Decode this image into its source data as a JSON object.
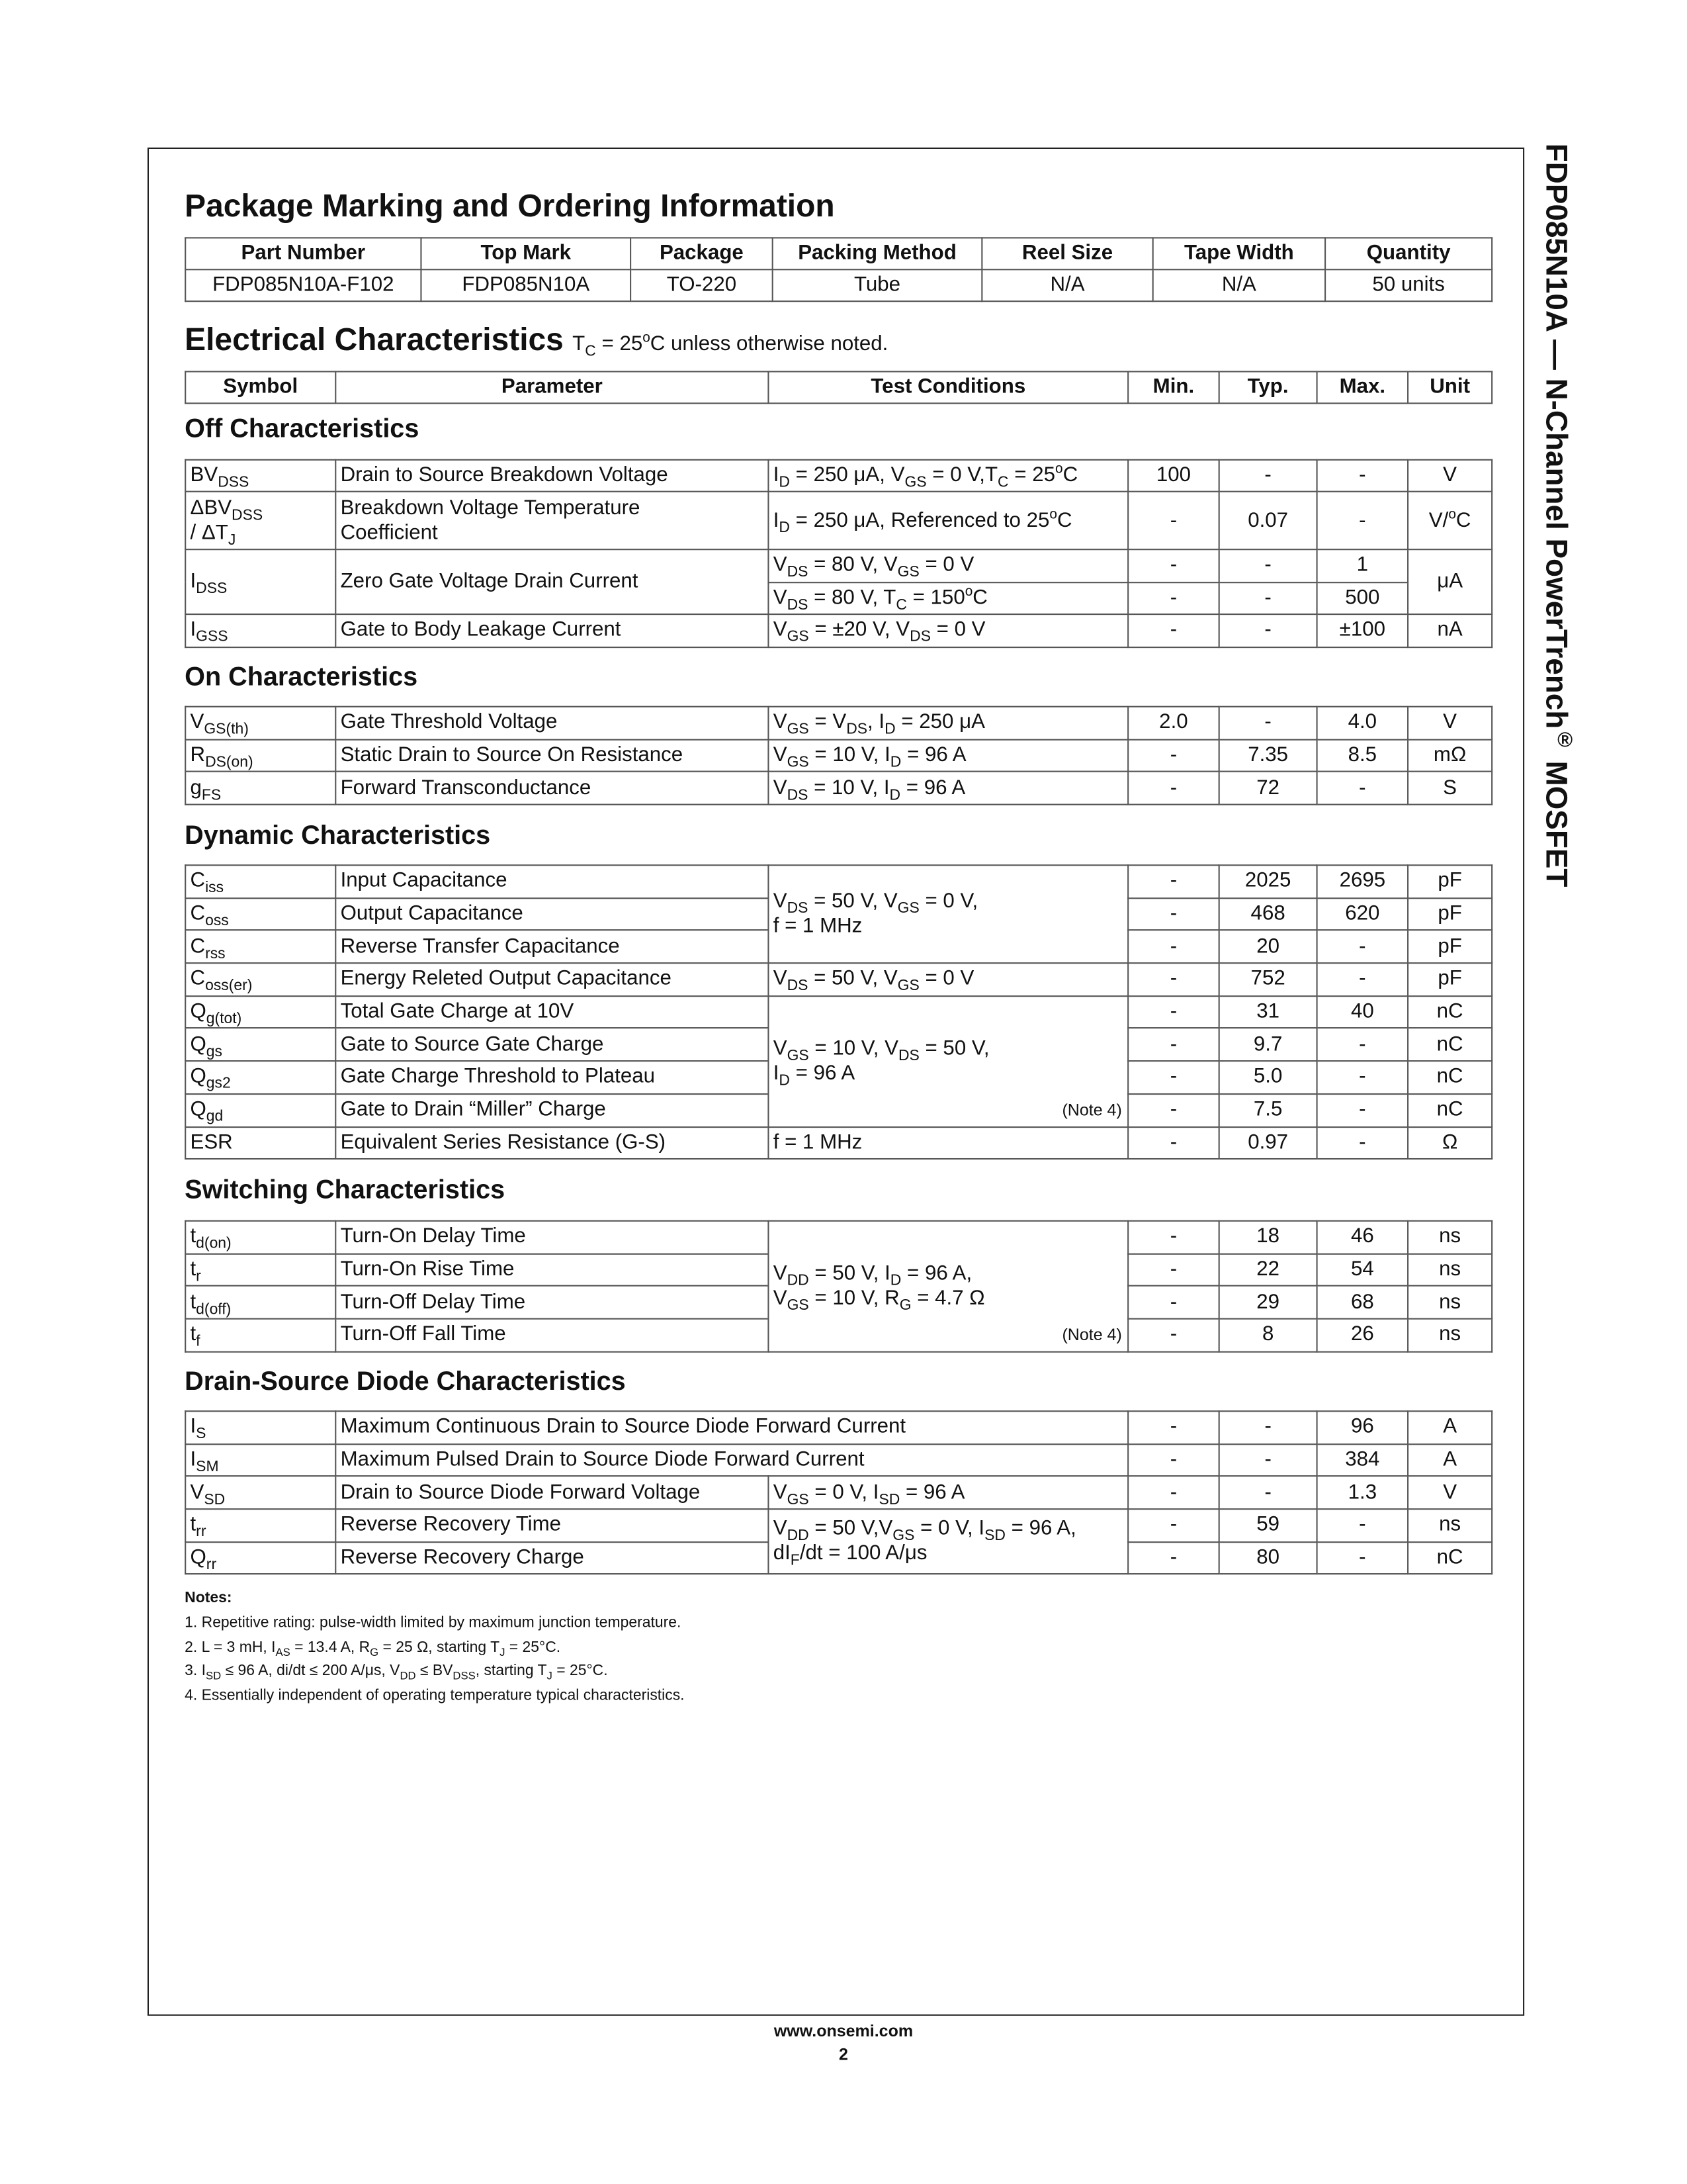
{
  "side_title": "FDP085N10A — N-Channel PowerTrench^{®} MOSFET",
  "package": {
    "title": "Package Marking and Ordering Information",
    "headers": [
      "Part Number",
      "Top Mark",
      "Package",
      "Packing Method",
      "Reel Size",
      "Tape Width",
      "Quantity"
    ],
    "row": [
      "FDP085N10A-F102",
      "FDP085N10A",
      "TO-220",
      "Tube",
      "N/A",
      "N/A",
      "50 units"
    ]
  },
  "electrical": {
    "title": "Electrical Characteristics",
    "subtitle": "T_{C} = 25^{o}C unless otherwise noted.",
    "headers": [
      "Symbol",
      "Parameter",
      "Test Conditions",
      "Min.",
      "Typ.",
      "Max.",
      "Unit"
    ]
  },
  "sections": {
    "off": {
      "title": "Off Characteristics",
      "rows": [
        {
          "s": "BV_{DSS}",
          "p": "Drain to Source Breakdown Voltage",
          "c": "I_{D} = 250 μA, V_{GS} = 0 V,T_{C} = 25^{o}C",
          "min": "100",
          "typ": "-",
          "max": "-",
          "u": "V"
        },
        {
          "s": "ΔBV_{DSS}\n / ΔT_{J}",
          "p": "Breakdown Voltage Temperature\nCoefficient",
          "c": "I_{D} = 250 μA, Referenced to 25^{o}C",
          "min": "-",
          "typ": "0.07",
          "max": "-",
          "u": "V/^{o}C"
        },
        {
          "s": "I_{DSS}",
          "p": "Zero Gate Voltage Drain Current",
          "c": "V_{DS} = 80 V, V_{GS} = 0 V",
          "min": "-",
          "typ": "-",
          "max": "1",
          "u": "μA"
        },
        {
          "c": "V_{DS} = 80 V, T_{C} = 150^{o}C",
          "min": "-",
          "typ": "-",
          "max": "500"
        },
        {
          "s": "I_{GSS}",
          "p": "Gate to Body Leakage Current",
          "c": "V_{GS} = ±20 V, V_{DS} = 0 V",
          "min": "-",
          "typ": "-",
          "max": "±100",
          "u": "nA"
        }
      ]
    },
    "on": {
      "title": "On Characteristics",
      "rows": [
        {
          "s": "V_{GS(th)}",
          "p": "Gate Threshold Voltage",
          "c": "V_{GS} = V_{DS}, I_{D} = 250 μA",
          "min": "2.0",
          "typ": "-",
          "max": "4.0",
          "u": "V"
        },
        {
          "s": "R_{DS(on)}",
          "p": "Static Drain to Source On Resistance",
          "c": "V_{GS} = 10 V, I_{D} = 96 A",
          "min": "-",
          "typ": "7.35",
          "max": "8.5",
          "u": "mΩ"
        },
        {
          "s": "g_{FS}",
          "p": "Forward Transconductance",
          "c": "V_{DS} = 10 V, I_{D} = 96 A",
          "min": "-",
          "typ": "72",
          "max": "-",
          "u": "S"
        }
      ]
    },
    "dynamic": {
      "title": "Dynamic Characteristics",
      "rows": [
        {
          "s": "C_{iss}",
          "p": "Input Capacitance",
          "c": "V_{DS} = 50 V, V_{GS} = 0 V,\nf = 1 MHz",
          "min": "-",
          "typ": "2025",
          "max": "2695",
          "u": "pF"
        },
        {
          "s": "C_{oss}",
          "p": "Output Capacitance",
          "min": "-",
          "typ": "468",
          "max": "620",
          "u": "pF"
        },
        {
          "s": "C_{rss}",
          "p": "Reverse Transfer Capacitance",
          "min": "-",
          "typ": "20",
          "max": "-",
          "u": "pF"
        },
        {
          "s": "C_{oss(er)}",
          "p": "Energy Releted Output Capacitance",
          "c": "V_{DS} = 50 V, V_{GS} = 0 V",
          "min": "-",
          "typ": "752",
          "max": "-",
          "u": "pF"
        },
        {
          "s": "Q_{g(tot)}",
          "p": "Total Gate Charge at 10V",
          "c": "V_{GS} = 10 V, V_{DS} = 50 V,\nI_{D} = 96 A",
          "note": "(Note 4)",
          "min": "-",
          "typ": "31",
          "max": "40",
          "u": "nC"
        },
        {
          "s": "Q_{gs}",
          "p": "Gate to Source Gate Charge",
          "min": "-",
          "typ": "9.7",
          "max": "-",
          "u": "nC"
        },
        {
          "s": "Q_{gs2}",
          "p": "Gate Charge Threshold to Plateau",
          "min": "-",
          "typ": "5.0",
          "max": "-",
          "u": "nC"
        },
        {
          "s": "Q_{gd}",
          "p": "Gate to Drain “Miller” Charge",
          "min": "-",
          "typ": "7.5",
          "max": "-",
          "u": "nC"
        },
        {
          "s": "ESR",
          "p": "Equivalent Series Resistance (G-S)",
          "c": "f = 1 MHz",
          "min": "-",
          "typ": "0.97",
          "max": "-",
          "u": "Ω"
        }
      ]
    },
    "switching": {
      "title": "Switching Characteristics",
      "rows": [
        {
          "s": "t_{d(on)}",
          "p": "Turn-On Delay Time",
          "c": "V_{DD} = 50 V, I_{D} = 96 A,\nV_{GS} = 10 V, R_{G} = 4.7 Ω",
          "note": "(Note 4)",
          "min": "-",
          "typ": "18",
          "max": "46",
          "u": "ns"
        },
        {
          "s": "t_{r}",
          "p": "Turn-On Rise Time",
          "min": "-",
          "typ": "22",
          "max": "54",
          "u": "ns"
        },
        {
          "s": "t_{d(off)}",
          "p": "Turn-Off Delay Time",
          "min": "-",
          "typ": "29",
          "max": "68",
          "u": "ns"
        },
        {
          "s": "t_{f}",
          "p": "Turn-Off Fall Time",
          "min": "-",
          "typ": "8",
          "max": "26",
          "u": "ns"
        }
      ]
    },
    "diode": {
      "title": "Drain-Source Diode Characteristics",
      "rows": [
        {
          "s": "I_{S}",
          "p": "Maximum Continuous Drain to Source Diode Forward Current",
          "min": "-",
          "typ": "-",
          "max": "96",
          "u": "A"
        },
        {
          "s": "I_{SM}",
          "p": "Maximum Pulsed Drain to Source Diode Forward Current",
          "min": "-",
          "typ": "-",
          "max": "384",
          "u": "A"
        },
        {
          "s": "V_{SD}",
          "p": "Drain to Source Diode Forward Voltage",
          "c": "V_{GS} = 0 V, I_{SD} = 96 A",
          "min": "-",
          "typ": "-",
          "max": "1.3",
          "u": "V"
        },
        {
          "s": "t_{rr}",
          "p": "Reverse Recovery Time",
          "c": "V_{DD} = 50 V,V_{GS} = 0 V, I_{SD} = 96 A,\ndI_{F}/dt = 100 A/μs",
          "min": "-",
          "typ": "59",
          "max": "-",
          "u": "ns"
        },
        {
          "s": "Q_{rr}",
          "p": "Reverse Recovery Charge",
          "min": "-",
          "typ": "80",
          "max": "-",
          "u": "nC"
        }
      ]
    }
  },
  "notes": {
    "title": "Notes:",
    "items": [
      "1. Repetitive rating: pulse-width limited by maximum junction temperature.",
      "2. L = 3 mH, I_{AS} = 13.4 A, R_{G} = 25 Ω, starting T_{J} = 25°C.",
      "3. I_{SD} ≤ 96 A, di/dt ≤ 200 A/μs, V_{DD} ≤ BV_{DSS}, starting T_{J} = 25°C.",
      "4. Essentially independent of operating temperature typical characteristics."
    ]
  },
  "footer": {
    "url": "www.onsemi.com",
    "page": "2"
  }
}
